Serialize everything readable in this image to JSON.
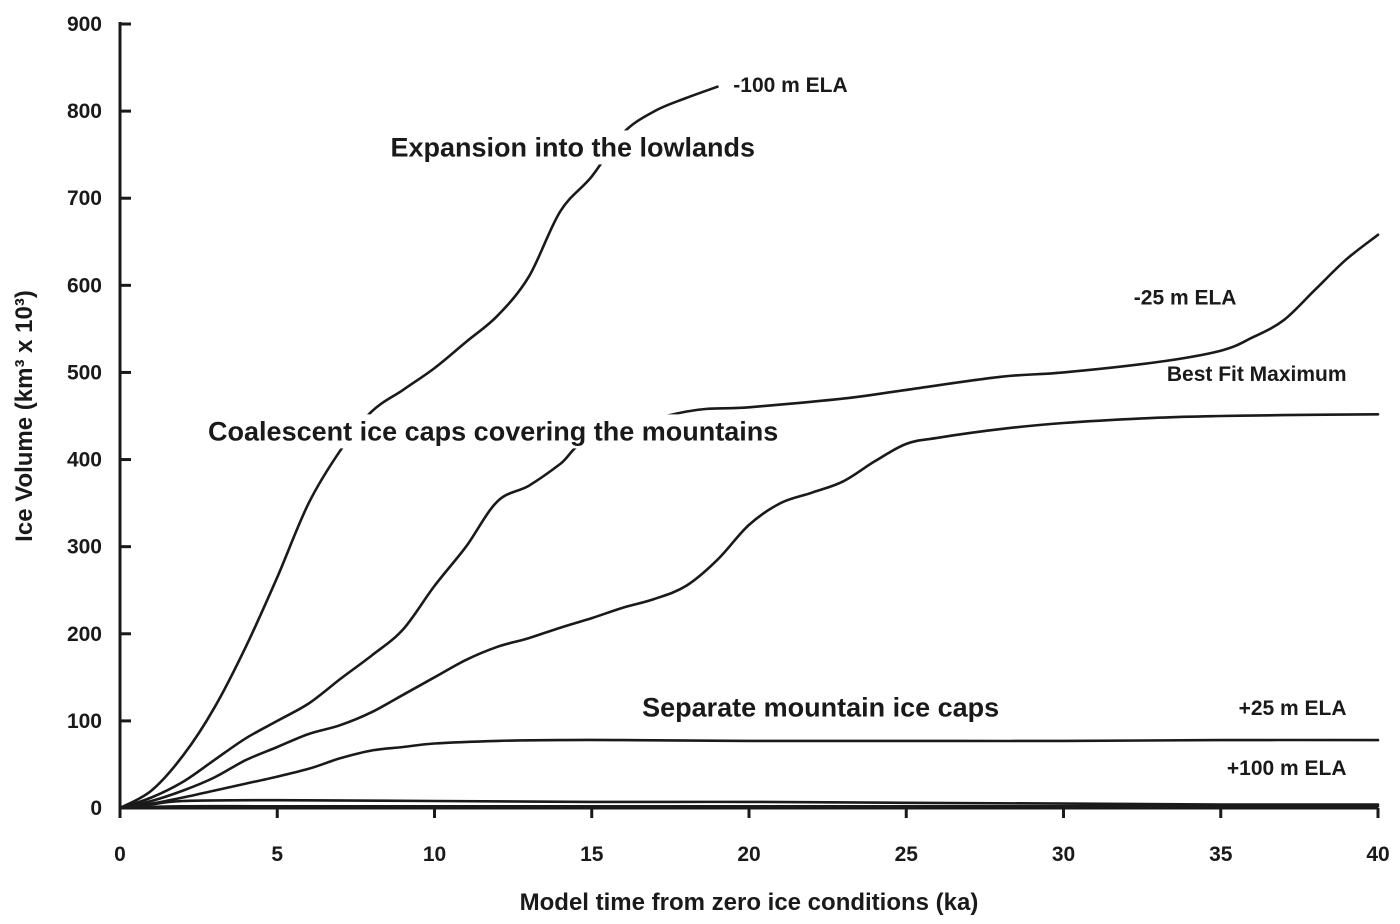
{
  "chart_data": {
    "type": "line",
    "title": "",
    "xlabel": "Model time from zero ice conditions (ka)",
    "ylabel": "Ice Volume (km³ x 10³)",
    "xlim": [
      0,
      40
    ],
    "ylim": [
      0,
      900
    ],
    "xticks": [
      0,
      5,
      10,
      15,
      20,
      25,
      30,
      35,
      40
    ],
    "yticks": [
      0,
      100,
      200,
      300,
      400,
      500,
      600,
      700,
      800,
      900
    ],
    "grid": false,
    "legend": "none",
    "series": [
      {
        "name": "-100 m ELA",
        "x": [
          0,
          1,
          2,
          3,
          4,
          5,
          6,
          7,
          8,
          9,
          10,
          11,
          12,
          13,
          14,
          15,
          16,
          17,
          18,
          19
        ],
        "y": [
          0,
          20,
          60,
          115,
          185,
          265,
          350,
          410,
          455,
          480,
          505,
          535,
          565,
          610,
          685,
          725,
          775,
          800,
          815,
          828
        ]
      },
      {
        "name": "-25 m ELA",
        "x": [
          0,
          1,
          2,
          3,
          4,
          5,
          6,
          7,
          8,
          9,
          10,
          11,
          12,
          13,
          14,
          15,
          18,
          20,
          23,
          25,
          28,
          30,
          33,
          35,
          36,
          37,
          38,
          39,
          40
        ],
        "y": [
          0,
          12,
          30,
          55,
          80,
          100,
          120,
          148,
          175,
          205,
          255,
          300,
          352,
          370,
          395,
          425,
          455,
          460,
          470,
          480,
          495,
          500,
          512,
          525,
          540,
          560,
          595,
          630,
          658
        ]
      },
      {
        "name": "Best Fit Maximum",
        "x": [
          0,
          1,
          2,
          3,
          4,
          5,
          6,
          7,
          8,
          9,
          10,
          11,
          12,
          13,
          14,
          15,
          16,
          17,
          18,
          19,
          20,
          21,
          22,
          23,
          24,
          25,
          26,
          28,
          30,
          33,
          35,
          37,
          40
        ],
        "y": [
          0,
          8,
          20,
          35,
          55,
          70,
          85,
          95,
          110,
          130,
          150,
          170,
          185,
          195,
          207,
          218,
          230,
          240,
          255,
          285,
          325,
          350,
          362,
          375,
          398,
          418,
          425,
          435,
          442,
          448,
          450,
          451,
          452
        ]
      },
      {
        "name": "+25 m ELA",
        "x": [
          0,
          1,
          2,
          3,
          4,
          5,
          6,
          7,
          8,
          9,
          10,
          12,
          14,
          16,
          20,
          25,
          30,
          35,
          40
        ],
        "y": [
          0,
          5,
          12,
          20,
          28,
          36,
          45,
          57,
          66,
          70,
          74,
          77,
          78,
          78,
          77,
          77,
          77,
          78,
          78
        ]
      },
      {
        "name": "+100 m ELA",
        "x": [
          0,
          1,
          2,
          5,
          10,
          15,
          20,
          25,
          30,
          35,
          40
        ],
        "y": [
          0,
          4,
          8,
          9,
          8,
          7,
          7,
          6,
          5,
          4,
          4
        ]
      },
      {
        "name": "",
        "x": [
          0,
          2,
          5,
          10,
          20,
          30,
          40
        ],
        "y": [
          0,
          2,
          2,
          2,
          2,
          2,
          2
        ]
      }
    ],
    "series_labels": [
      {
        "text": "-100 m ELA",
        "x": 19.5,
        "y": 822,
        "anchor": "start"
      },
      {
        "text": "-25 m ELA",
        "x": 35.5,
        "y": 578,
        "anchor": "end"
      },
      {
        "text": "Best Fit Maximum",
        "x": 39.0,
        "y": 490,
        "anchor": "end"
      },
      {
        "text": "+25 m ELA",
        "x": 39.0,
        "y": 107,
        "anchor": "end"
      },
      {
        "text": "+100 m ELA",
        "x": 39.0,
        "y": 38,
        "anchor": "end"
      }
    ],
    "annotations": [
      {
        "text": "Expansion into the lowlands",
        "x": 8.6,
        "y": 748,
        "anchor": "start"
      },
      {
        "text": "Coalescent ice caps covering the mountains",
        "x": 2.8,
        "y": 422,
        "anchor": "start"
      },
      {
        "text": "Separate mountain ice caps",
        "x": 16.6,
        "y": 105,
        "anchor": "start"
      }
    ]
  }
}
